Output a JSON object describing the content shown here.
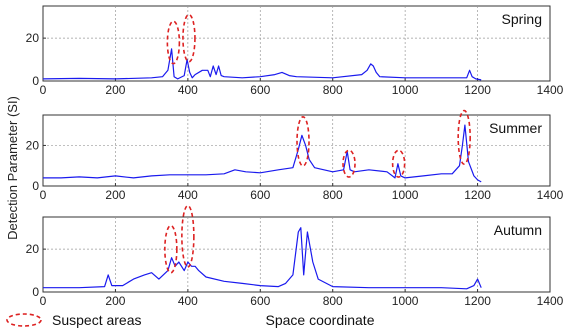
{
  "chart_data": {
    "type": "line",
    "ylabel": "Detection Parameter (SI)",
    "xlabel": "Space coordinate",
    "legend_label": "Suspect areas",
    "x_ticks": [
      0,
      200,
      400,
      600,
      800,
      1000,
      1200,
      1400
    ],
    "xlim": [
      0,
      1400
    ],
    "line_color": "#1a1aee",
    "ellipse_color": "#dd2222",
    "panels": [
      {
        "name": "Spring",
        "ylim": [
          0,
          35
        ],
        "y_ticks": [
          0,
          20
        ],
        "x": [
          0,
          100,
          200,
          300,
          330,
          345,
          355,
          362,
          372,
          390,
          398,
          405,
          412,
          420,
          440,
          455,
          462,
          470,
          478,
          485,
          492,
          500,
          550,
          600,
          640,
          660,
          680,
          700,
          800,
          880,
          895,
          905,
          912,
          920,
          930,
          1000,
          1100,
          1170,
          1178,
          1185,
          1195,
          1210
        ],
        "y": [
          1,
          1.2,
          1,
          1.5,
          2,
          5,
          15,
          2,
          1,
          2.5,
          10,
          4,
          1.5,
          3,
          5,
          5,
          2,
          7,
          3,
          7,
          2.5,
          2,
          1.5,
          2,
          3,
          4,
          2.5,
          2,
          1.5,
          3,
          5,
          8,
          7,
          4,
          2,
          1.5,
          1.5,
          1.5,
          5,
          2,
          1,
          0.5
        ],
        "suspects": [
          [
            360,
            18,
            16
          ],
          [
            403,
            20,
            14
          ]
        ]
      },
      {
        "name": "Summer",
        "ylim": [
          0,
          35
        ],
        "y_ticks": [
          0,
          20
        ],
        "x": [
          0,
          50,
          100,
          150,
          200,
          250,
          300,
          350,
          400,
          450,
          500,
          530,
          560,
          600,
          650,
          690,
          705,
          715,
          725,
          735,
          750,
          800,
          830,
          840,
          848,
          860,
          900,
          950,
          972,
          980,
          988,
          1000,
          1050,
          1100,
          1130,
          1150,
          1158,
          1165,
          1175,
          1190,
          1200,
          1210
        ],
        "y": [
          4,
          4,
          4.5,
          4,
          5,
          4,
          5,
          5.5,
          5.5,
          5.5,
          6,
          8,
          7,
          6.5,
          8,
          9,
          18,
          25,
          20,
          13,
          9,
          7,
          8,
          17,
          8,
          7,
          8,
          7,
          4,
          11,
          5,
          4,
          5,
          6,
          6,
          10,
          20,
          30,
          12,
          5,
          3,
          2
        ],
        "suspects": [
          [
            718,
            22,
            18
          ],
          [
            845,
            11,
            13
          ],
          [
            982,
            11,
            12
          ],
          [
            1163,
            24,
            21
          ]
        ]
      },
      {
        "name": "Autumn",
        "ylim": [
          0,
          35
        ],
        "y_ticks": [
          0,
          20
        ],
        "x": [
          0,
          100,
          170,
          180,
          190,
          220,
          250,
          280,
          300,
          320,
          345,
          355,
          365,
          375,
          390,
          400,
          410,
          420,
          430,
          450,
          500,
          550,
          600,
          650,
          670,
          690,
          705,
          712,
          720,
          730,
          745,
          760,
          800,
          900,
          1000,
          1100,
          1170,
          1190,
          1200,
          1210
        ],
        "y": [
          2,
          2,
          2.5,
          8,
          3,
          3,
          6,
          8,
          9,
          6,
          10,
          16,
          12,
          14,
          10,
          14,
          12,
          12,
          10,
          7,
          5,
          4,
          3,
          2.5,
          4,
          8,
          28,
          30,
          8,
          28,
          14,
          6,
          2.5,
          2,
          2,
          2,
          1.5,
          3,
          6,
          2
        ],
        "suspects": [
          [
            353,
            20,
            15
          ],
          [
            400,
            26,
            7
          ]
        ]
      }
    ]
  }
}
